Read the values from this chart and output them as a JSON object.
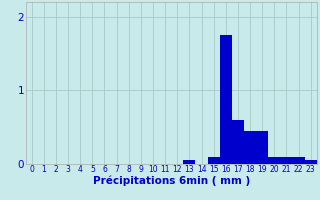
{
  "categories": [
    0,
    1,
    2,
    3,
    4,
    5,
    6,
    7,
    8,
    9,
    10,
    11,
    12,
    13,
    14,
    15,
    16,
    17,
    18,
    19,
    20,
    21,
    22,
    23
  ],
  "values": [
    0,
    0,
    0,
    0,
    0,
    0,
    0,
    0,
    0,
    0,
    0,
    0,
    0,
    0.05,
    0,
    0.1,
    1.75,
    0.6,
    0.45,
    0.45,
    0.1,
    0.1,
    0.1,
    0.05
  ],
  "bar_color": "#0000cc",
  "background_color": "#c8eaea",
  "grid_color": "#aac8c8",
  "xlabel": "Précipitations 6min ( mm )",
  "xlabel_color": "#0000cc",
  "tick_color": "#0000cc",
  "axis_color": "#aaaaaa",
  "ylim": [
    0,
    2.2
  ],
  "yticks": [
    0,
    1,
    2
  ],
  "xlim": [
    -0.5,
    23.5
  ],
  "bar_width": 1.0,
  "tick_fontsize": 5.5,
  "ylabel_fontsize": 7.5,
  "xlabel_fontsize": 7.5
}
